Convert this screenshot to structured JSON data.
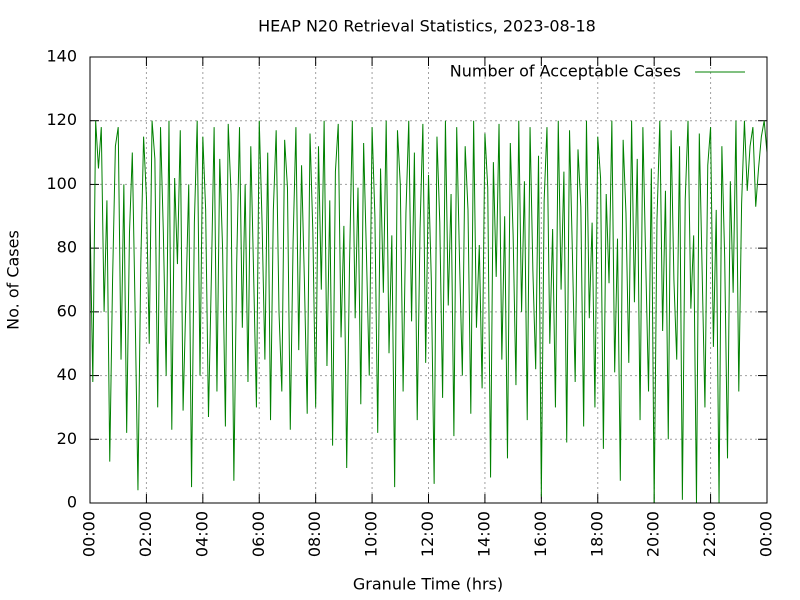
{
  "chart_data": {
    "type": "line",
    "title": "HEAP N20 Retrieval Statistics, 2023-08-18",
    "xlabel": "Granule Time (hrs)",
    "ylabel": "No. of Cases",
    "xlim": [
      0,
      24
    ],
    "ylim": [
      0,
      140
    ],
    "xticks": [
      {
        "value": 0,
        "label": "00:00"
      },
      {
        "value": 2,
        "label": "02:00"
      },
      {
        "value": 4,
        "label": "04:00"
      },
      {
        "value": 6,
        "label": "06:00"
      },
      {
        "value": 8,
        "label": "08:00"
      },
      {
        "value": 10,
        "label": "10:00"
      },
      {
        "value": 12,
        "label": "12:00"
      },
      {
        "value": 14,
        "label": "14:00"
      },
      {
        "value": 16,
        "label": "16:00"
      },
      {
        "value": 18,
        "label": "18:00"
      },
      {
        "value": 20,
        "label": "20:00"
      },
      {
        "value": 22,
        "label": "22:00"
      },
      {
        "value": 24,
        "label": "00:00"
      }
    ],
    "yticks": [
      0,
      20,
      40,
      60,
      80,
      100,
      120,
      140
    ],
    "grid": true,
    "legend": "top right",
    "x": [
      0,
      0.1,
      0.2,
      0.3,
      0.4,
      0.5,
      0.6,
      0.7,
      0.8,
      0.9,
      1,
      1.1,
      1.2,
      1.3,
      1.4,
      1.5,
      1.6,
      1.7,
      1.8,
      1.9,
      2,
      2.1,
      2.2,
      2.3,
      2.4,
      2.5,
      2.6,
      2.7,
      2.8,
      2.9,
      3,
      3.1,
      3.2,
      3.3,
      3.4,
      3.5,
      3.6,
      3.7,
      3.8,
      3.9,
      4,
      4.1,
      4.2,
      4.3,
      4.4,
      4.5,
      4.6,
      4.7,
      4.8,
      4.9,
      5,
      5.1,
      5.2,
      5.3,
      5.4,
      5.5,
      5.6,
      5.7,
      5.8,
      5.9,
      6,
      6.1,
      6.2,
      6.3,
      6.4,
      6.5,
      6.6,
      6.7,
      6.8,
      6.9,
      7,
      7.1,
      7.2,
      7.3,
      7.4,
      7.5,
      7.6,
      7.7,
      7.8,
      7.9,
      8,
      8.1,
      8.2,
      8.3,
      8.4,
      8.5,
      8.6,
      8.7,
      8.8,
      8.9,
      9,
      9.1,
      9.2,
      9.3,
      9.4,
      9.5,
      9.6,
      9.7,
      9.8,
      9.9,
      10,
      10.1,
      10.2,
      10.3,
      10.4,
      10.5,
      10.6,
      10.7,
      10.8,
      10.9,
      11,
      11.1,
      11.2,
      11.3,
      11.4,
      11.5,
      11.6,
      11.7,
      11.8,
      11.9,
      12,
      12.1,
      12.2,
      12.3,
      12.4,
      12.5,
      12.6,
      12.7,
      12.8,
      12.9,
      13,
      13.1,
      13.2,
      13.3,
      13.4,
      13.5,
      13.6,
      13.7,
      13.8,
      13.9,
      14,
      14.1,
      14.2,
      14.3,
      14.4,
      14.5,
      14.6,
      14.7,
      14.8,
      14.9,
      15,
      15.1,
      15.2,
      15.3,
      15.4,
      15.5,
      15.6,
      15.7,
      15.8,
      15.9,
      16,
      16.1,
      16.2,
      16.3,
      16.4,
      16.5,
      16.6,
      16.7,
      16.8,
      16.9,
      17,
      17.1,
      17.2,
      17.3,
      17.4,
      17.5,
      17.6,
      17.7,
      17.8,
      17.9,
      18,
      18.1,
      18.2,
      18.3,
      18.4,
      18.5,
      18.6,
      18.7,
      18.8,
      18.9,
      19,
      19.1,
      19.2,
      19.3,
      19.4,
      19.5,
      19.6,
      19.7,
      19.8,
      19.9,
      20,
      20.1,
      20.2,
      20.3,
      20.4,
      20.5,
      20.6,
      20.7,
      20.8,
      20.9,
      21,
      21.1,
      21.2,
      21.3,
      21.4,
      21.5,
      21.6,
      21.7,
      21.8,
      21.9,
      22,
      22.1,
      22.2,
      22.3,
      22.4,
      22.5,
      22.6,
      22.7,
      22.8,
      22.9,
      23,
      23.1,
      23.2,
      23.3,
      23.4,
      23.5,
      23.6,
      23.7,
      23.8,
      23.9,
      24
    ],
    "series": [
      {
        "name": "Number of Acceptable Cases",
        "color": "#008000",
        "values": [
          90,
          38,
          120,
          105,
          118,
          60,
          95,
          13,
          70,
          112,
          118,
          45,
          100,
          22,
          85,
          110,
          60,
          4,
          75,
          115,
          96,
          50,
          120,
          108,
          30,
          118,
          85,
          40,
          120,
          23,
          102,
          75,
          117,
          29,
          64,
          100,
          5,
          88,
          120,
          40,
          115,
          92,
          27,
          70,
          118,
          35,
          108,
          80,
          24,
          119,
          97,
          7,
          75,
          118,
          55,
          100,
          38,
          112,
          72,
          30,
          120,
          88,
          45,
          110,
          26,
          92,
          117,
          60,
          35,
          114,
          99,
          23,
          82,
          118,
          48,
          106,
          70,
          28,
          116,
          85,
          30,
          112,
          67,
          120,
          43,
          95,
          18,
          104,
          119,
          52,
          87,
          11,
          75,
          120,
          58,
          99,
          31,
          113,
          78,
          40,
          118,
          90,
          22,
          105,
          66,
          120,
          47,
          84,
          5,
          117,
          100,
          35,
          91,
          120,
          57,
          110,
          26,
          86,
          119,
          44,
          103,
          70,
          6,
          115,
          88,
          33,
          120,
          62,
          97,
          21,
          118,
          76,
          40,
          112,
          92,
          28,
          120,
          55,
          81,
          36,
          116,
          99,
          8,
          107,
          71,
          119,
          45,
          90,
          14,
          113,
          84,
          37,
          120,
          60,
          101,
          26,
          118,
          73,
          42,
          109,
          2,
          95,
          118,
          50,
          86,
          30,
          120,
          67,
          104,
          19,
          117,
          79,
          38,
          111,
          93,
          24,
          120,
          58,
          88,
          30,
          115,
          102,
          17,
          97,
          69,
          120,
          41,
          83,
          7,
          114,
          91,
          44,
          120,
          63,
          108,
          26,
          118,
          76,
          35,
          105,
          0,
          89,
          120,
          54,
          98,
          20,
          117,
          70,
          45,
          112,
          1,
          95,
          120,
          61,
          84,
          0,
          116,
          73,
          30,
          106,
          118,
          49,
          92,
          0,
          112,
          77,
          14,
          101,
          66,
          120,
          35,
          94,
          120,
          98,
          112,
          118,
          93,
          105,
          115,
          120,
          110
        ]
      }
    ]
  }
}
